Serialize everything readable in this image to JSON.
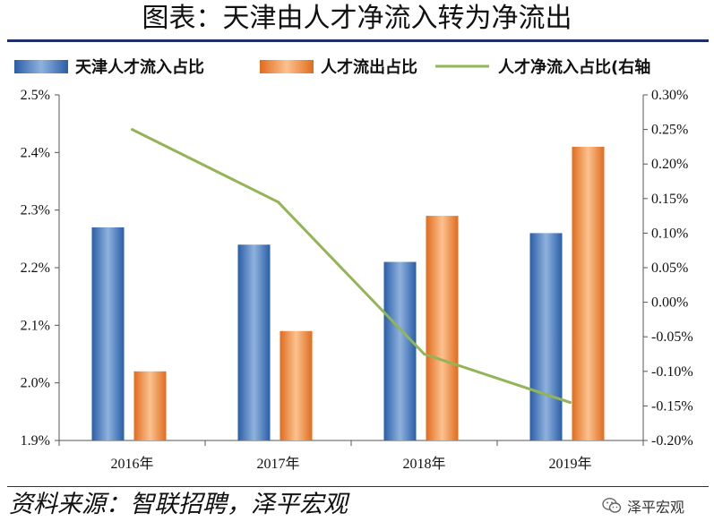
{
  "header": {
    "title": "图表：天津由人才净流入转为净流出"
  },
  "footer": {
    "source": "资料来源：智联招聘，泽平宏观",
    "watermark": "泽平宏观",
    "watermark_icon": "wechat-icon"
  },
  "colors": {
    "inflow": "#3f78c1",
    "outflow": "#ed7d31",
    "net": "#93b457",
    "rule": "#1f2f6e"
  },
  "chart_data": {
    "type": "bar",
    "categories": [
      "2016年",
      "2017年",
      "2018年",
      "2019年"
    ],
    "series": [
      {
        "name": "天津人才流入占比",
        "type": "bar",
        "axis": "left",
        "values": [
          2.27,
          2.24,
          2.21,
          2.26
        ]
      },
      {
        "name": "人才流出占比",
        "type": "bar",
        "axis": "left",
        "values": [
          2.02,
          2.09,
          2.29,
          2.41
        ]
      },
      {
        "name": "人才净流入占比(右轴",
        "type": "line",
        "axis": "right",
        "values": [
          0.25,
          0.145,
          -0.075,
          -0.145
        ]
      }
    ],
    "y_left": {
      "min": 1.9,
      "max": 2.5,
      "step": 0.1,
      "tick_labels": [
        "1.9%",
        "2.0%",
        "2.1%",
        "2.2%",
        "2.3%",
        "2.4%",
        "2.5%"
      ]
    },
    "y_right": {
      "min": -0.2,
      "max": 0.3,
      "step": 0.05,
      "tick_labels": [
        "-0.20%",
        "-0.15%",
        "-0.10%",
        "-0.05%",
        "0.00%",
        "0.05%",
        "0.10%",
        "0.15%",
        "0.20%",
        "0.25%",
        "0.30%"
      ]
    },
    "legend_position": "top",
    "grid": false
  }
}
